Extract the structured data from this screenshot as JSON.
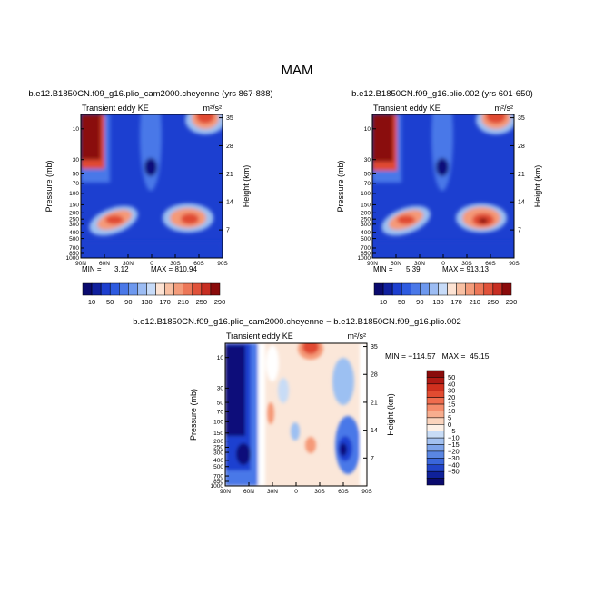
{
  "page": {
    "title": "MAM"
  },
  "colors": {
    "lo3": "#0b0b7a",
    "lo2": "#1c3fd0",
    "lo1": "#4a78e8",
    "lo0": "#9cc0f2",
    "mid": "#ffffff",
    "hi0": "#fbd8c2",
    "hi1": "#f59a78",
    "hi2": "#e04a30",
    "hi3": "#8a0b0b"
  },
  "chart_data": [
    {
      "type": "heatmap",
      "title": "b.e12.B1850CN.f09_g16.plio_cam2000.cheyenne (yrs 867-888)",
      "left_label": "Transient eddy KE",
      "right_label": "m²/s²",
      "ylabel": "Pressure (mb)",
      "y2label": "Height (km)",
      "x_ticks": [
        "90N",
        "60N",
        "30N",
        "0",
        "30S",
        "60S",
        "90S"
      ],
      "y_ticks": [
        "10",
        "30",
        "50",
        "70",
        "100",
        "150",
        "200",
        "250",
        "300",
        "400",
        "500",
        "700",
        "850",
        "1000"
      ],
      "y2_ticks": [
        "35",
        "28",
        "21",
        "14",
        "7"
      ],
      "min_label": "MIN =",
      "min": "3.12",
      "max_label": "MAX = 810.94",
      "colorbar_labels": [
        "10",
        "50",
        "90",
        "130",
        "170",
        "210",
        "250",
        "290"
      ]
    },
    {
      "type": "heatmap",
      "title": "b.e12.B1850CN.f09_g16.plio.002 (yrs 601-650)",
      "left_label": "Transient eddy KE",
      "right_label": "m²/s²",
      "ylabel": "Pressure (mb)",
      "y2label": "Height (km)",
      "x_ticks": [
        "90N",
        "60N",
        "30N",
        "0",
        "30S",
        "60S",
        "90S"
      ],
      "y_ticks": [
        "10",
        "30",
        "50",
        "70",
        "100",
        "150",
        "200",
        "250",
        "300",
        "400",
        "500",
        "700",
        "850",
        "1000"
      ],
      "y2_ticks": [
        "35",
        "28",
        "21",
        "14",
        "7"
      ],
      "min_label": "MIN =",
      "min": "5.39",
      "max_label": "MAX = 913.13",
      "colorbar_labels": [
        "10",
        "50",
        "90",
        "130",
        "170",
        "210",
        "250",
        "290"
      ]
    },
    {
      "type": "heatmap",
      "title": "b.e12.B1850CN.f09_g16.plio_cam2000.cheyenne − b.e12.B1850CN.f09_g16.plio.002",
      "left_label": "Transient eddy KE",
      "right_label": "m²/s²",
      "ylabel": "Pressure (mb)",
      "y2label": "Height (km)",
      "x_ticks": [
        "90N",
        "60N",
        "30N",
        "0",
        "30S",
        "60S",
        "90S"
      ],
      "y_ticks": [
        "10",
        "30",
        "50",
        "70",
        "100",
        "150",
        "200",
        "250",
        "300",
        "400",
        "500",
        "700",
        "850",
        "1000"
      ],
      "y2_ticks": [
        "35",
        "28",
        "21",
        "14",
        "7"
      ],
      "minmax": "MIN = −114.57   MAX =  45.15",
      "colorbar_labels": [
        "50",
        "40",
        "30",
        "20",
        "15",
        "10",
        "5",
        "0",
        "−5",
        "−10",
        "−15",
        "−20",
        "−30",
        "−40",
        "−50"
      ]
    }
  ]
}
